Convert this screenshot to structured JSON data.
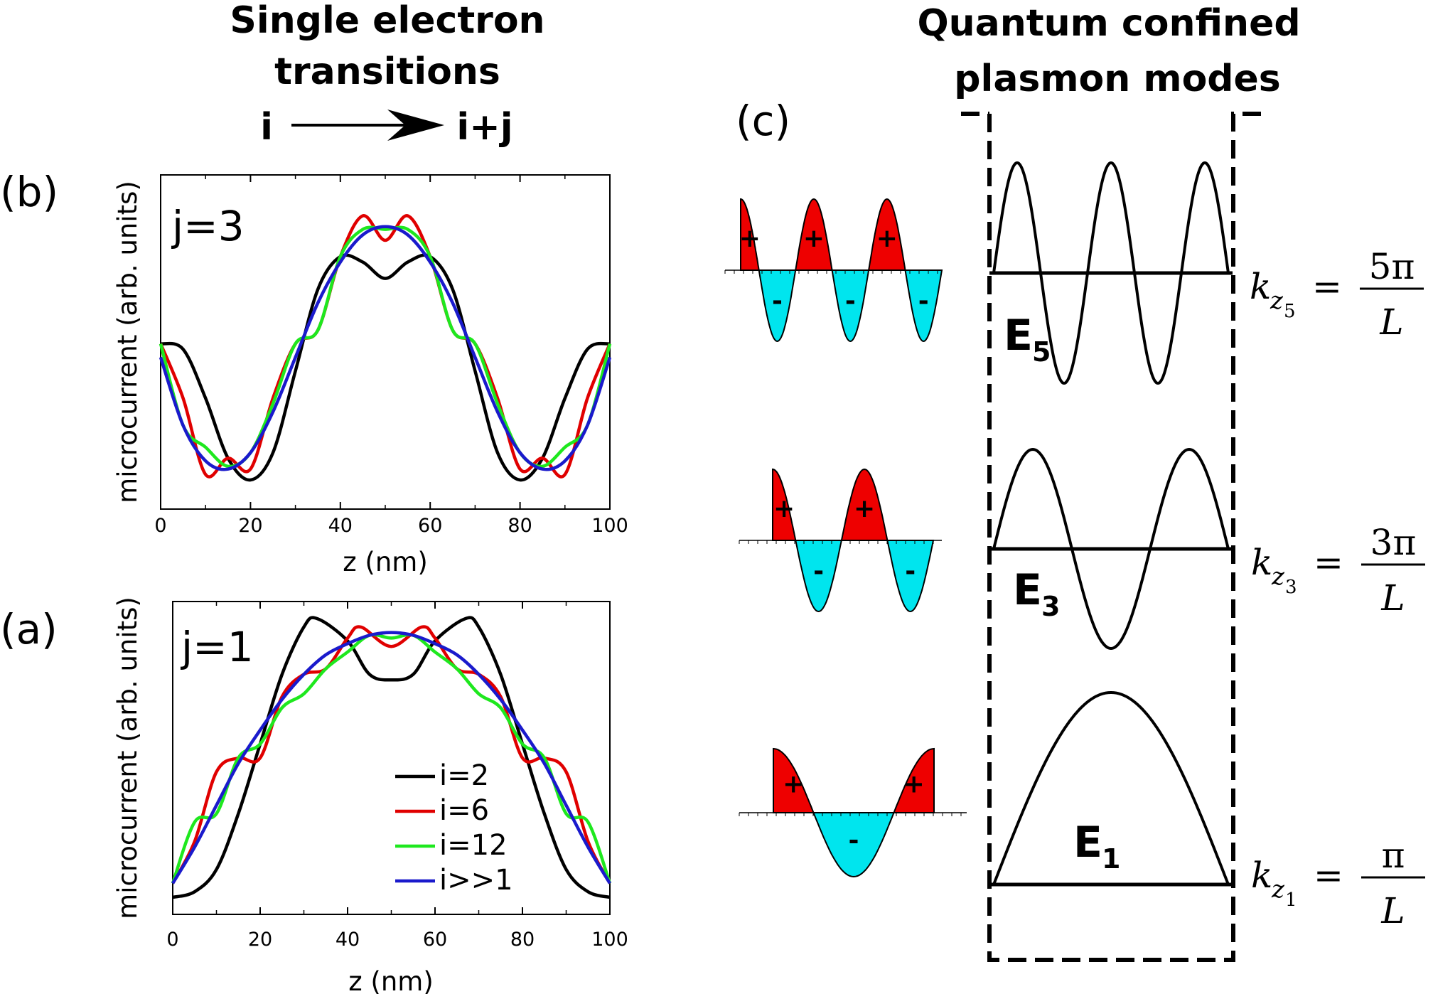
{
  "header_left": {
    "line1": "Single electron",
    "line2": "transitions",
    "from": "i",
    "to": "i+j"
  },
  "header_right": {
    "line1": "Quantum confined",
    "line2": "plasmon modes"
  },
  "panel_labels": {
    "b": "(b)",
    "a": "(a)",
    "c": "(c)"
  },
  "chart_data": [
    {
      "type": "line",
      "panel": "(b)",
      "annotation": "j=3",
      "xlabel": "z (nm)",
      "ylabel": "microcurrent (arb. units)",
      "xlim": [
        0,
        100
      ],
      "xticks": [
        "0",
        "20",
        "40",
        "60",
        "80",
        "100"
      ],
      "grid": false,
      "series": [
        {
          "name": "i=2",
          "color": "#000000",
          "x": [
            0,
            5,
            10,
            15,
            20,
            25,
            30,
            35,
            40,
            45,
            50,
            55,
            60,
            65,
            70,
            75,
            80,
            85,
            90,
            95,
            100
          ],
          "y": [
            0.5,
            0.48,
            0.3,
            0.08,
            0.0,
            0.1,
            0.4,
            0.7,
            0.82,
            0.8,
            0.74,
            0.8,
            0.82,
            0.7,
            0.4,
            0.1,
            0.0,
            0.08,
            0.3,
            0.48,
            0.5
          ]
        },
        {
          "name": "i=6",
          "color": "#e00000",
          "x": [
            0,
            5,
            10,
            15,
            20,
            25,
            30,
            35,
            40,
            45,
            50,
            55,
            60,
            65,
            70,
            75,
            80,
            85,
            90,
            95,
            100
          ],
          "y": [
            0.5,
            0.3,
            0.02,
            0.08,
            0.04,
            0.3,
            0.5,
            0.55,
            0.82,
            0.97,
            0.88,
            0.97,
            0.82,
            0.55,
            0.5,
            0.3,
            0.04,
            0.08,
            0.02,
            0.3,
            0.5
          ]
        },
        {
          "name": "i=12",
          "color": "#1ee81e",
          "x": [
            0,
            5,
            10,
            15,
            20,
            25,
            30,
            35,
            40,
            45,
            50,
            55,
            60,
            65,
            70,
            75,
            80,
            85,
            90,
            95,
            100
          ],
          "y": [
            0.5,
            0.2,
            0.12,
            0.05,
            0.1,
            0.28,
            0.5,
            0.55,
            0.82,
            0.92,
            0.92,
            0.92,
            0.82,
            0.55,
            0.5,
            0.28,
            0.1,
            0.05,
            0.12,
            0.2,
            0.5
          ]
        },
        {
          "name": "i>>1",
          "color": "#1a1acc",
          "x": [
            0,
            5,
            10,
            15,
            20,
            25,
            30,
            35,
            40,
            45,
            50,
            55,
            60,
            65,
            70,
            75,
            80,
            85,
            90,
            95,
            100
          ],
          "y": [
            0.45,
            0.2,
            0.07,
            0.04,
            0.1,
            0.25,
            0.45,
            0.65,
            0.8,
            0.9,
            0.93,
            0.9,
            0.8,
            0.65,
            0.45,
            0.25,
            0.1,
            0.04,
            0.07,
            0.2,
            0.45
          ]
        }
      ]
    },
    {
      "type": "line",
      "panel": "(a)",
      "annotation": "j=1",
      "xlabel": "z (nm)",
      "ylabel": "microcurrent (arb. units)",
      "xlim": [
        0,
        100
      ],
      "xticks": [
        "0",
        "20",
        "40",
        "60",
        "80",
        "100"
      ],
      "grid": false,
      "legend": {
        "position": "lower-right",
        "entries": [
          "i=2",
          "i=6",
          "i=12",
          "i>>1"
        ]
      },
      "series": [
        {
          "name": "i=2",
          "color": "#000000",
          "x": [
            0,
            5,
            10,
            15,
            20,
            25,
            30,
            33,
            40,
            45,
            50,
            55,
            60,
            67,
            70,
            75,
            80,
            85,
            90,
            95,
            100
          ],
          "y": [
            0.0,
            0.02,
            0.1,
            0.3,
            0.55,
            0.8,
            0.97,
            1.0,
            0.92,
            0.8,
            0.78,
            0.8,
            0.92,
            1.0,
            0.97,
            0.8,
            0.55,
            0.3,
            0.1,
            0.02,
            0.0
          ]
        },
        {
          "name": "i=6",
          "color": "#e00000",
          "x": [
            0,
            5,
            10,
            15,
            20,
            25,
            30,
            35,
            40,
            43,
            50,
            57,
            60,
            65,
            70,
            75,
            80,
            85,
            90,
            95,
            100
          ],
          "y": [
            0.05,
            0.2,
            0.45,
            0.5,
            0.5,
            0.72,
            0.8,
            0.82,
            0.93,
            0.97,
            0.9,
            0.97,
            0.93,
            0.82,
            0.8,
            0.72,
            0.5,
            0.5,
            0.45,
            0.2,
            0.05
          ]
        },
        {
          "name": "i=12",
          "color": "#1ee81e",
          "x": [
            0,
            5,
            10,
            15,
            20,
            25,
            30,
            35,
            40,
            45,
            50,
            55,
            60,
            65,
            70,
            75,
            80,
            85,
            90,
            95,
            100
          ],
          "y": [
            0.05,
            0.27,
            0.3,
            0.5,
            0.55,
            0.68,
            0.73,
            0.82,
            0.88,
            0.94,
            0.93,
            0.94,
            0.88,
            0.82,
            0.73,
            0.68,
            0.55,
            0.5,
            0.3,
            0.27,
            0.05
          ]
        },
        {
          "name": "i>>1",
          "color": "#1a1acc",
          "x": [
            0,
            5,
            10,
            15,
            20,
            25,
            30,
            35,
            40,
            45,
            50,
            55,
            60,
            65,
            70,
            75,
            80,
            85,
            90,
            95,
            100
          ],
          "y": [
            0.05,
            0.18,
            0.33,
            0.48,
            0.6,
            0.71,
            0.8,
            0.87,
            0.91,
            0.94,
            0.95,
            0.94,
            0.91,
            0.87,
            0.8,
            0.71,
            0.6,
            0.48,
            0.33,
            0.18,
            0.05
          ]
        }
      ]
    }
  ],
  "panel_c": {
    "modes": [
      {
        "energy_letter": "E",
        "energy_index": "5",
        "k_letter": "k",
        "k_sub": "z",
        "k_subsub": "5",
        "equals": "=",
        "numerator": "5π",
        "denominator": "L",
        "half_periods": 5
      },
      {
        "energy_letter": "E",
        "energy_index": "3",
        "k_letter": "k",
        "k_sub": "z",
        "k_subsub": "3",
        "equals": "=",
        "numerator": "3π",
        "denominator": "L",
        "half_periods": 3
      },
      {
        "energy_letter": "E",
        "energy_index": "1",
        "k_letter": "k",
        "k_sub": "z",
        "k_subsub": "1",
        "equals": "=",
        "numerator": "π",
        "denominator": "L",
        "half_periods": 1
      }
    ],
    "charge_plus": "+",
    "charge_minus": "-",
    "colors": {
      "positive": "#ee0000",
      "negative": "#00e5ee",
      "line": "#000000"
    }
  }
}
